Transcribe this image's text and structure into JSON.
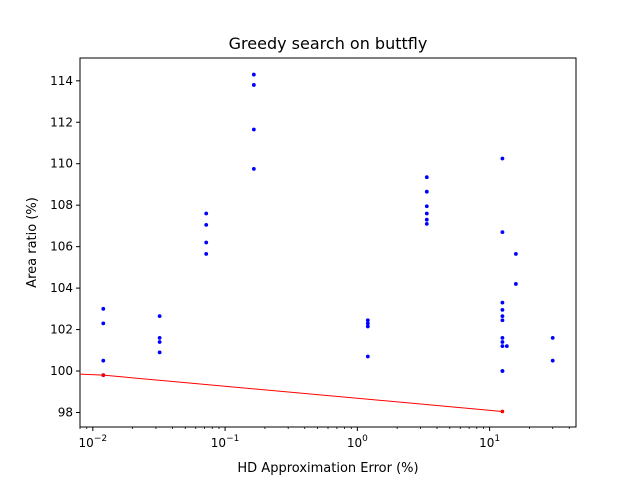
{
  "chart_data": {
    "type": "scatter",
    "title": "Greedy search on buttfly",
    "xlabel": "HD Approximation Error (%)",
    "ylabel": "Area ratio (%)",
    "x_scale": "log",
    "xlim": [
      0.008,
      45
    ],
    "ylim": [
      97.3,
      115.1
    ],
    "x_ticks": [
      {
        "value": 0.01,
        "base": "10",
        "exp": "−2"
      },
      {
        "value": 0.1,
        "base": "10",
        "exp": "−1"
      },
      {
        "value": 1,
        "base": "10",
        "exp": "0"
      },
      {
        "value": 10,
        "base": "10",
        "exp": "1"
      }
    ],
    "y_ticks": [
      "98",
      "100",
      "102",
      "104",
      "106",
      "108",
      "110",
      "112",
      "114"
    ],
    "grid": false,
    "series": [
      {
        "color": "#0000ff",
        "marker": "dot",
        "points": [
          [
            0.012,
            103.0
          ],
          [
            0.012,
            102.3
          ],
          [
            0.012,
            100.5
          ],
          [
            0.012,
            99.8
          ],
          [
            0.032,
            102.65
          ],
          [
            0.032,
            101.6
          ],
          [
            0.032,
            101.4
          ],
          [
            0.032,
            100.9
          ],
          [
            0.072,
            107.6
          ],
          [
            0.072,
            107.05
          ],
          [
            0.072,
            106.2
          ],
          [
            0.072,
            105.65
          ],
          [
            0.165,
            114.3
          ],
          [
            0.165,
            113.8
          ],
          [
            0.165,
            111.65
          ],
          [
            0.165,
            109.75
          ],
          [
            1.2,
            102.45
          ],
          [
            1.2,
            102.3
          ],
          [
            1.2,
            102.15
          ],
          [
            1.2,
            100.7
          ],
          [
            3.35,
            109.35
          ],
          [
            3.35,
            108.65
          ],
          [
            3.35,
            107.95
          ],
          [
            3.35,
            107.6
          ],
          [
            3.35,
            107.3
          ],
          [
            3.35,
            107.1
          ],
          [
            12.5,
            110.25
          ],
          [
            12.5,
            106.7
          ],
          [
            12.5,
            103.3
          ],
          [
            12.5,
            102.95
          ],
          [
            12.5,
            102.65
          ],
          [
            12.5,
            102.45
          ],
          [
            12.5,
            101.6
          ],
          [
            12.5,
            101.4
          ],
          [
            12.5,
            101.2
          ],
          [
            12.5,
            100.0
          ],
          [
            12.5,
            100.0
          ],
          [
            13.5,
            101.2
          ],
          [
            15.8,
            105.65
          ],
          [
            15.8,
            104.2
          ],
          [
            30.0,
            101.6
          ],
          [
            30.0,
            100.5
          ]
        ]
      },
      {
        "color": "#ff0000",
        "marker": "line",
        "points": [
          [
            0.008,
            99.85
          ],
          [
            0.012,
            99.8
          ],
          [
            12.5,
            98.05
          ]
        ]
      }
    ]
  }
}
